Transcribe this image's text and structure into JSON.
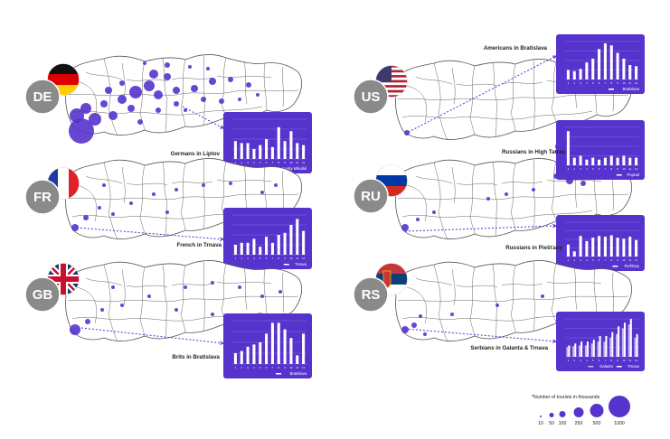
{
  "colors": {
    "accent": "#5533cc",
    "map_line": "#555555",
    "badge": "#8a8a8a",
    "bar": "#ffffff"
  },
  "panels": [
    {
      "id": "de",
      "code": "DE",
      "flag": "de-flag-icon",
      "caption": "Germans in Liptov",
      "chart_legend": [
        "Liptovsky Mikuláš"
      ]
    },
    {
      "id": "fr",
      "code": "FR",
      "flag": "fr-flag-icon",
      "caption": "French in Trnava",
      "chart_legend": [
        "Trnava"
      ]
    },
    {
      "id": "gb",
      "code": "GB",
      "flag": "gb-flag-icon",
      "caption": "Brits in Bratislava",
      "chart_legend": [
        "Bratislava"
      ]
    },
    {
      "id": "us",
      "code": "US",
      "flag": "us-flag-icon",
      "caption": "Americans in Bratislava",
      "chart_legend": [
        "Bratislava"
      ]
    },
    {
      "id": "ru1",
      "code": "RU",
      "flag": "ru-flag-icon",
      "caption": "Russians in High Tatras",
      "chart_legend": [
        "Poprad"
      ]
    },
    {
      "id": "ru2",
      "code": "",
      "flag": "",
      "caption": "Russians in Piešťany",
      "chart_legend": [
        "Piešťany"
      ]
    },
    {
      "id": "rs",
      "code": "RS",
      "flag": "rs-flag-icon",
      "caption": "Serbians in Galanta & Trnava",
      "chart_legend": [
        "Galanta",
        "Trnava"
      ]
    }
  ],
  "legend": {
    "note": "*Number of tourists in thousands",
    "sizes": [
      "10",
      "50",
      "100",
      "250",
      "500",
      "1000"
    ]
  },
  "chart_data": [
    {
      "type": "bar",
      "title": "Liptovsky Mikuláš",
      "categories": [
        "1",
        "2",
        "3",
        "4",
        "5",
        "6",
        "7",
        "8",
        "9",
        "10",
        "11",
        "12"
      ],
      "series": [
        {
          "name": "Liptovsky Mikuláš",
          "values": [
            45,
            40,
            40,
            25,
            35,
            50,
            30,
            80,
            45,
            70,
            40,
            35
          ]
        }
      ]
    },
    {
      "type": "bar",
      "title": "Trnava",
      "categories": [
        "1",
        "2",
        "3",
        "4",
        "5",
        "6",
        "7",
        "8",
        "9",
        "10",
        "11",
        "12"
      ],
      "series": [
        {
          "name": "Trnava",
          "values": [
            25,
            30,
            30,
            40,
            20,
            45,
            30,
            50,
            55,
            75,
            90,
            60
          ]
        }
      ]
    },
    {
      "type": "bar",
      "title": "Bratislava",
      "categories": [
        "1",
        "2",
        "3",
        "4",
        "5",
        "6",
        "7",
        "8",
        "9",
        "10",
        "11",
        "12"
      ],
      "series": [
        {
          "name": "Bratislava",
          "values": [
            25,
            30,
            40,
            45,
            50,
            70,
            95,
            95,
            80,
            60,
            20,
            70
          ]
        }
      ]
    },
    {
      "type": "bar",
      "title": "Bratislava",
      "categories": [
        "1",
        "2",
        "3",
        "4",
        "5",
        "6",
        "7",
        "8",
        "9",
        "10",
        "11",
        "12"
      ],
      "series": [
        {
          "name": "Bratislava",
          "values": [
            25,
            22,
            28,
            45,
            55,
            80,
            95,
            90,
            70,
            55,
            38,
            35
          ]
        }
      ]
    },
    {
      "type": "bar",
      "title": "Poprad",
      "categories": [
        "1",
        "2",
        "3",
        "4",
        "5",
        "6",
        "7",
        "8",
        "9",
        "10",
        "11",
        "12"
      ],
      "series": [
        {
          "name": "Poprad",
          "values": [
            90,
            20,
            25,
            15,
            20,
            15,
            20,
            25,
            20,
            25,
            20,
            20
          ]
        }
      ]
    },
    {
      "type": "bar",
      "title": "Piešťany",
      "categories": [
        "1",
        "2",
        "3",
        "4",
        "5",
        "6",
        "7",
        "8",
        "9",
        "10",
        "11",
        "12"
      ],
      "series": [
        {
          "name": "Piešťany",
          "values": [
            35,
            15,
            60,
            45,
            55,
            60,
            58,
            62,
            55,
            52,
            58,
            48
          ]
        }
      ]
    },
    {
      "type": "bar",
      "title": "Galanta & Trnava",
      "categories": [
        "1",
        "2",
        "3",
        "4",
        "5",
        "6",
        "7",
        "8",
        "9",
        "10",
        "11",
        "12"
      ],
      "series": [
        {
          "name": "Galanta",
          "values": [
            25,
            28,
            30,
            30,
            35,
            40,
            40,
            50,
            60,
            75,
            85,
            50
          ]
        },
        {
          "name": "Trnava",
          "values": [
            30,
            35,
            40,
            40,
            45,
            55,
            55,
            65,
            80,
            90,
            100,
            60
          ]
        }
      ]
    }
  ]
}
